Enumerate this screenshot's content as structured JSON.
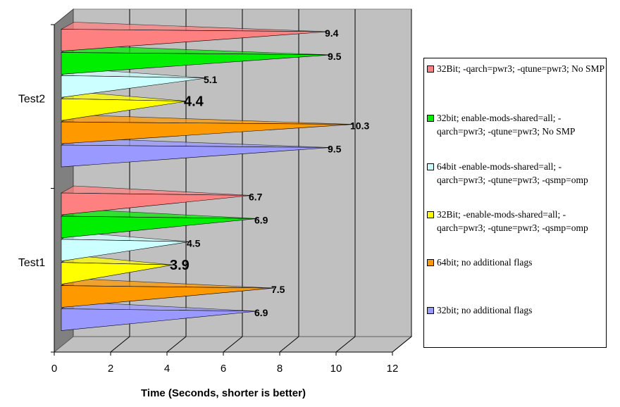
{
  "chart_data": {
    "type": "bar",
    "orientation": "horizontal",
    "style": "3d-cone",
    "categories": [
      "Test1",
      "Test2"
    ],
    "series": [
      {
        "name": "32bit;  no additional flags",
        "color": "#9999ff",
        "values": [
          6.9,
          9.5
        ]
      },
      {
        "name": "64bit;  no additional flags",
        "color": "#ff9900",
        "values": [
          7.5,
          10.3
        ]
      },
      {
        "name": "32Bit; -enable-mods-shared=all; -qarch=pwr3; -qtune=pwr3; -qsmp=omp",
        "color": "#ffff00",
        "values": [
          3.9,
          4.4
        ]
      },
      {
        "name": "64bit -enable-mods-shared=all; -qarch=pwr3; -qtune=pwr3; -qsmp=omp",
        "color": "#ccffff",
        "values": [
          4.5,
          5.1
        ]
      },
      {
        "name": "32bit; enable-mods-shared=all; -qarch=pwr3; -qtune=pwr3; No SMP",
        "color": "#00ee00",
        "values": [
          6.9,
          9.5
        ]
      },
      {
        "name": "32Bit; -qarch=pwr3; -qtune=pwr3; No SMP",
        "color": "#ff8080",
        "values": [
          6.7,
          9.4
        ]
      }
    ],
    "data_labels": [
      [
        "6.9",
        "9.5"
      ],
      [
        "7.5",
        "10.3"
      ],
      [
        "3.9",
        "4.4"
      ],
      [
        "4.5",
        "5.1"
      ],
      [
        "6.9",
        "9.5"
      ],
      [
        "6.7",
        "9.4"
      ]
    ],
    "xlabel": "Time (Seconds, shorter is better)",
    "ylabel": "",
    "xlim": [
      0,
      12
    ],
    "xticks": [
      "0",
      "2",
      "4",
      "6",
      "8",
      "10",
      "12"
    ],
    "grid": true,
    "legend_position": "right",
    "wall_color": "#c0c0c0"
  },
  "legend": [
    {
      "text": "32Bit; -qarch=pwr3; -qtune=pwr3; No SMP",
      "color": "#ff8080"
    },
    {
      "text": "32bit; enable-mods-shared=all; -qarch=pwr3; -qtune=pwr3; No SMP",
      "color": "#00ee00"
    },
    {
      "text": "64bit -enable-mods-shared=all; -qarch=pwr3; -qtune=pwr3; -qsmp=omp",
      "color": "#ccffff"
    },
    {
      "text": "32Bit; -enable-mods-shared=all; -qarch=pwr3; -qtune=pwr3; -qsmp=omp",
      "color": "#ffff00"
    },
    {
      "text": "64bit;  no additional flags",
      "color": "#ff9900"
    },
    {
      "text": "32bit;  no additional flags",
      "color": "#9999ff"
    }
  ]
}
